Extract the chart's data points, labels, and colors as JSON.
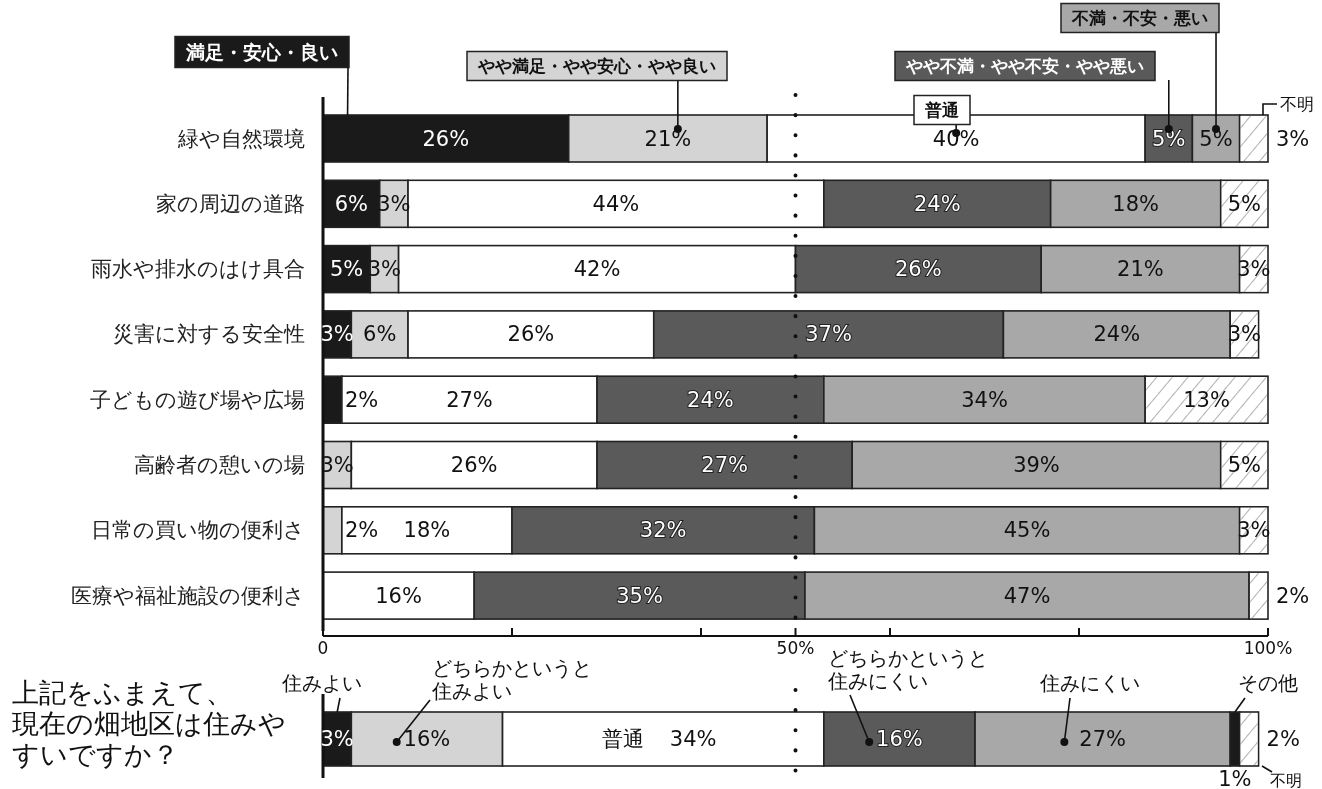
{
  "chart_data": [
    {
      "type": "bar",
      "orientation": "horizontal",
      "stacked": true,
      "legend": "top",
      "categories": [
        "緑や自然環境",
        "家の周辺の道路",
        "雨水や排水のはけ具合",
        "災害に対する安全性",
        "子どもの遊び場や広場",
        "高齢者の憩いの場",
        "日常の買い物の便利さ",
        "医療や福祉施設の便利さ"
      ],
      "series": [
        {
          "name": "満足・安心・良い",
          "color": "#1a1a1a",
          "values": [
            26,
            6,
            5,
            3,
            2,
            0,
            0,
            0
          ],
          "value_labels": [
            "26%",
            "6%",
            "5%",
            "3%",
            "2%",
            null,
            null,
            null
          ]
        },
        {
          "name": "やや満足・やや安心・やや良い",
          "color": "#d4d4d4",
          "values": [
            21,
            3,
            3,
            6,
            0,
            3,
            2,
            0
          ],
          "value_labels": [
            "21%",
            "3%",
            "3%",
            "6%",
            null,
            "3%",
            "2%",
            null
          ]
        },
        {
          "name": "普通",
          "color": "#ffffff",
          "values": [
            40,
            44,
            42,
            26,
            27,
            26,
            18,
            16
          ],
          "value_labels": [
            "40%",
            "44%",
            "42%",
            "26%",
            "27%",
            "26%",
            "18%",
            "16%"
          ]
        },
        {
          "name": "やや不満・やや不安・やや悪い",
          "color": "#5a5a5a",
          "values": [
            5,
            24,
            26,
            37,
            24,
            27,
            32,
            35
          ],
          "value_labels": [
            "5%",
            "24%",
            "26%",
            "37%",
            "24%",
            "27%",
            "32%",
            "35%"
          ]
        },
        {
          "name": "不満・不安・悪い",
          "color": "#a8a8a8",
          "values": [
            5,
            18,
            21,
            24,
            34,
            39,
            45,
            47
          ],
          "value_labels": [
            "5%",
            "18%",
            "21%",
            "24%",
            "34%",
            "39%",
            "45%",
            "47%"
          ]
        },
        {
          "name": "不明",
          "color": "#ffffff",
          "values": [
            3,
            5,
            3,
            3,
            13,
            5,
            3,
            2
          ],
          "value_labels": [
            "3%",
            "5%",
            "3%",
            "3%",
            "13%",
            "5%",
            "3%",
            "2%"
          ]
        }
      ],
      "xlim": [
        0,
        100
      ],
      "xticks": [
        0,
        {
          "value": 20,
          "label": null
        },
        {
          "value": 40,
          "label": null
        },
        {
          "value": 50,
          "label": "50%"
        },
        {
          "value": 60,
          "label": null
        },
        {
          "value": 80,
          "label": null
        },
        {
          "value": 100,
          "label": "100%"
        }
      ],
      "ref_lines": [
        {
          "axis": "x",
          "value": 50,
          "line_style": "dotted"
        }
      ]
    },
    {
      "type": "bar",
      "orientation": "horizontal",
      "stacked": true,
      "legend": "top",
      "title": "上記をふまえて、現在の畑地区は住みやすいですか？",
      "categories": [
        null
      ],
      "series": [
        {
          "name": "住みよい",
          "color": "#1a1a1a",
          "values": [
            3
          ],
          "value_labels": [
            "3%"
          ]
        },
        {
          "name": "どちらかというと住みよい",
          "color": "#d4d4d4",
          "values": [
            16
          ],
          "value_labels": [
            "16%"
          ]
        },
        {
          "name": "普通",
          "color": "#ffffff",
          "values": [
            34
          ],
          "value_labels": [
            "34%"
          ]
        },
        {
          "name": "どちらかというと住みにくい",
          "color": "#5a5a5a",
          "values": [
            16
          ],
          "value_labels": [
            "16%"
          ]
        },
        {
          "name": "住みにくい",
          "color": "#a8a8a8",
          "values": [
            27
          ],
          "value_labels": [
            "27%"
          ]
        },
        {
          "name": "その他",
          "color": "#1a1a1a",
          "values": [
            1
          ],
          "value_labels": [
            "1%"
          ]
        },
        {
          "name": "不明",
          "color": "#ffffff",
          "values": [
            2
          ],
          "value_labels": [
            "2%"
          ]
        }
      ],
      "xlim": [
        0,
        100
      ],
      "tick_labels": false,
      "ref_lines": [
        {
          "axis": "x",
          "value": 50,
          "line_style": "dotted"
        }
      ]
    }
  ]
}
